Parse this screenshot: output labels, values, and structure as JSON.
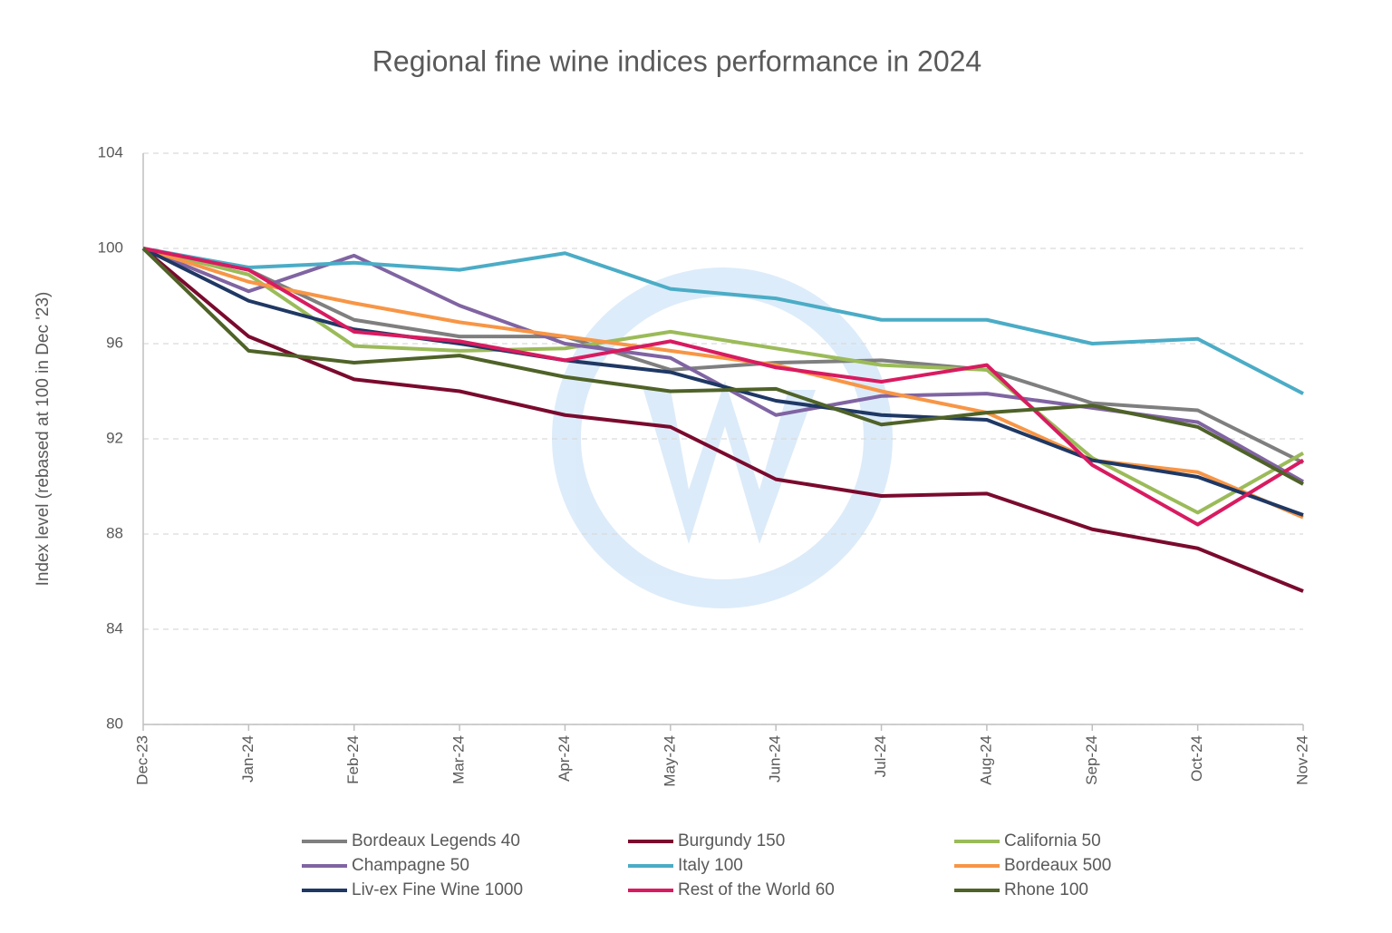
{
  "chart_data": {
    "type": "line",
    "title": "Regional fine wine indices performance in 2024",
    "y_label": "Index level (rebased at 100 in Dec '23)",
    "categories": [
      "Dec-23",
      "Jan-24",
      "Feb-24",
      "Mar-24",
      "Apr-24",
      "May-24",
      "Jun-24",
      "Jul-24",
      "Aug-24",
      "Sep-24",
      "Oct-24",
      "Nov-24"
    ],
    "ylim": [
      80,
      104
    ],
    "yticks": [
      80,
      84,
      88,
      92,
      96,
      100,
      104
    ],
    "grid": true,
    "series": [
      {
        "name": "Bordeaux Legends 40",
        "color": "#7f7f7f",
        "values": [
          100,
          99.1,
          97.0,
          96.3,
          96.3,
          94.9,
          95.2,
          95.3,
          94.9,
          93.5,
          93.2,
          91.0
        ]
      },
      {
        "name": "Burgundy 150",
        "color": "#7a0a2e",
        "values": [
          100,
          96.3,
          94.5,
          94.0,
          93.0,
          92.5,
          90.3,
          89.6,
          89.7,
          88.2,
          87.4,
          85.6
        ]
      },
      {
        "name": "California 50",
        "color": "#9bbb59",
        "values": [
          100,
          98.9,
          95.9,
          95.7,
          95.8,
          96.5,
          95.8,
          95.1,
          94.9,
          91.2,
          88.9,
          91.4
        ]
      },
      {
        "name": "Champagne 50",
        "color": "#8064a2",
        "values": [
          100,
          98.2,
          99.7,
          97.6,
          96.0,
          95.4,
          93.0,
          93.8,
          93.9,
          93.3,
          92.7,
          90.2
        ]
      },
      {
        "name": "Italy 100",
        "color": "#4bacc6",
        "values": [
          100,
          99.2,
          99.4,
          99.1,
          99.8,
          98.3,
          97.9,
          97.0,
          97.0,
          96.0,
          96.2,
          93.9
        ]
      },
      {
        "name": "Bordeaux 500",
        "color": "#f79646",
        "values": [
          100,
          98.6,
          97.7,
          96.9,
          96.3,
          95.7,
          95.1,
          94.0,
          93.1,
          91.1,
          90.6,
          88.7
        ]
      },
      {
        "name": "Liv-ex Fine Wine 1000",
        "color": "#1f3864",
        "values": [
          100,
          97.8,
          96.6,
          96.0,
          95.3,
          94.8,
          93.6,
          93.0,
          92.8,
          91.1,
          90.4,
          88.8
        ]
      },
      {
        "name": "Rest of the World 60",
        "color": "#d81b60",
        "values": [
          100,
          99.1,
          96.5,
          96.1,
          95.3,
          96.1,
          95.0,
          94.4,
          95.1,
          90.9,
          88.4,
          91.1
        ]
      },
      {
        "name": "Rhone 100",
        "color": "#4f6228",
        "values": [
          100,
          95.7,
          95.2,
          95.5,
          94.6,
          94.0,
          94.1,
          92.6,
          93.1,
          93.4,
          92.5,
          90.1
        ]
      }
    ]
  }
}
